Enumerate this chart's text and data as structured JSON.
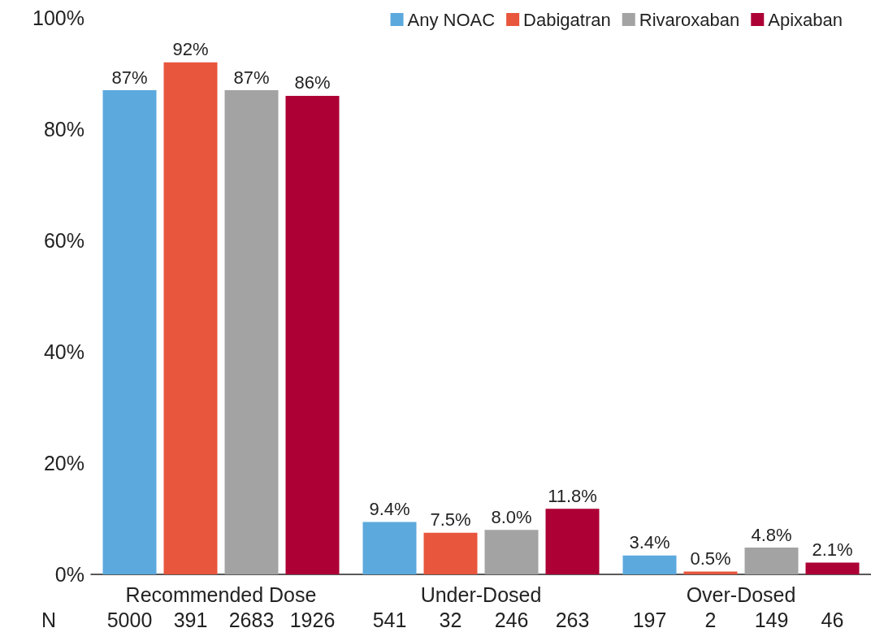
{
  "chart_data": {
    "type": "bar",
    "categories": [
      "Recommended Dose",
      "Under-Dosed",
      "Over-Dosed"
    ],
    "series": [
      {
        "name": "Any NOAC",
        "color": "#5ca9de",
        "values": [
          87,
          9.4,
          3.4
        ],
        "value_labels": [
          "87%",
          "9.4%",
          "3.4%"
        ]
      },
      {
        "name": "Dabigatran",
        "color": "#e8563d",
        "values": [
          92,
          7.5,
          0.5
        ],
        "value_labels": [
          "92%",
          "7.5%",
          "0.5%"
        ]
      },
      {
        "name": "Rivaroxaban",
        "color": "#a3a3a3",
        "values": [
          87,
          8.0,
          4.8
        ],
        "value_labels": [
          "87%",
          "8.0%",
          "4.8%"
        ]
      },
      {
        "name": "Apixaban",
        "color": "#ad0035",
        "values": [
          86,
          11.8,
          2.1
        ],
        "value_labels": [
          "86%",
          "11.8%",
          "2.1%"
        ]
      }
    ],
    "ylim": [
      0,
      100
    ],
    "yticks": [
      {
        "value": 0,
        "label": "0%"
      },
      {
        "value": 20,
        "label": "20%"
      },
      {
        "value": 40,
        "label": "40%"
      },
      {
        "value": 60,
        "label": "60%"
      },
      {
        "value": 80,
        "label": "80%"
      },
      {
        "value": 100,
        "label": "100%"
      }
    ],
    "grid": false,
    "legend": "top right",
    "annotations": [
      "N",
      "5000",
      "391",
      "2683",
      "1926",
      "541",
      "32",
      "246",
      "263",
      "197",
      "2",
      "149",
      "46"
    ]
  }
}
